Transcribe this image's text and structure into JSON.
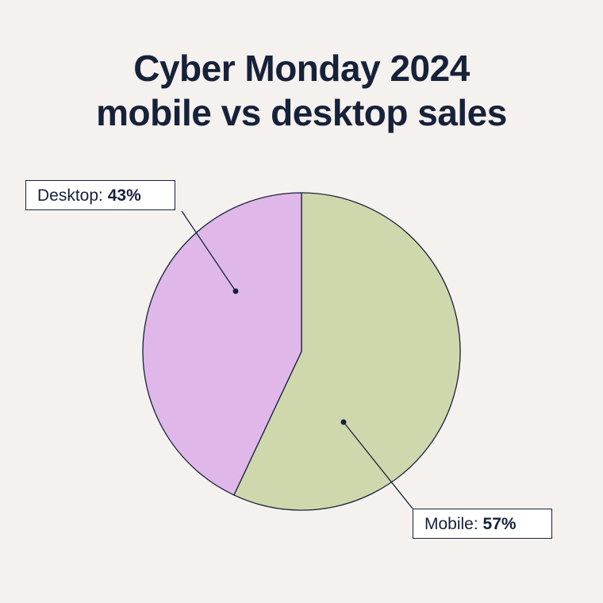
{
  "chart_data": {
    "type": "pie",
    "title_line1": "Cyber Monday 2024",
    "title_line2": "mobile vs desktop sales",
    "slices": [
      {
        "label": "Mobile",
        "value": 57,
        "value_text": "57%",
        "color": "#cfd8ad"
      },
      {
        "label": "Desktop",
        "value": 43,
        "value_text": "43%",
        "color": "#dfb8e9"
      }
    ],
    "stroke_color": "#16213a",
    "background": "#f5f1ee"
  }
}
